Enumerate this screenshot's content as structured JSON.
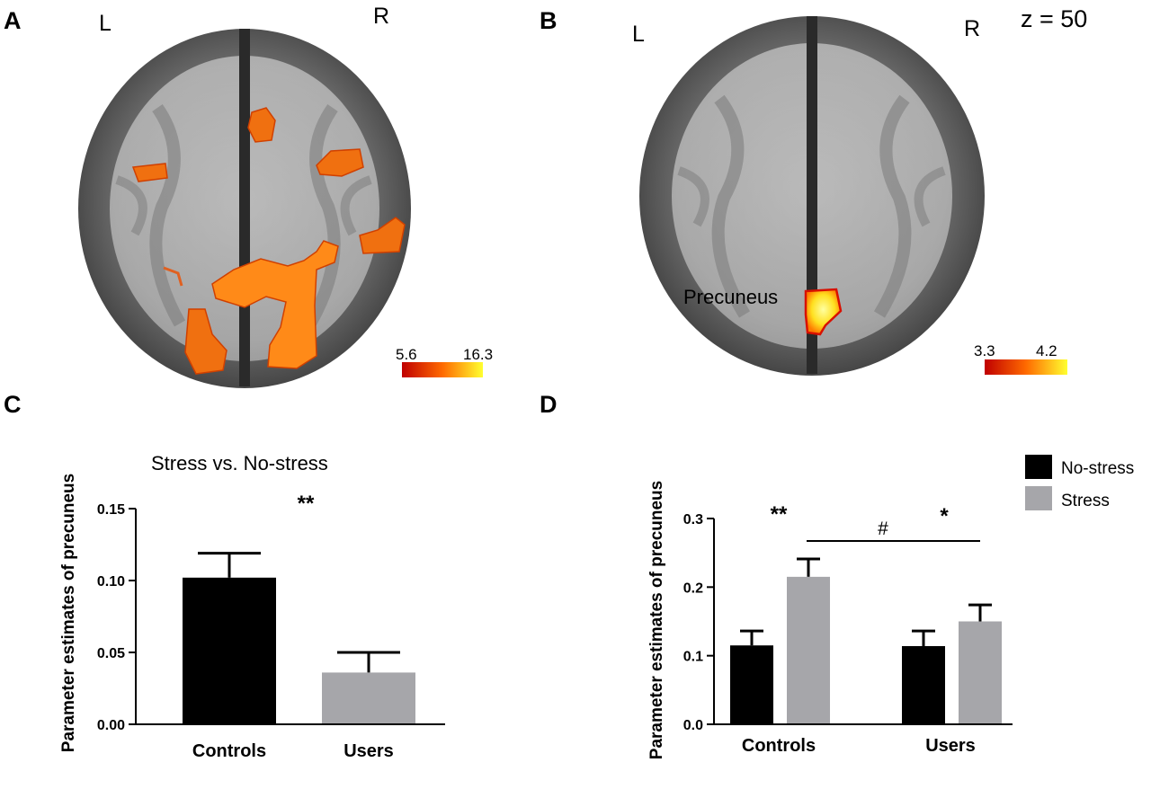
{
  "panels": {
    "a": {
      "label": "A",
      "left": "L",
      "right": "R",
      "colorbar": {
        "min": "5.6",
        "max": "16.3",
        "colors": [
          "#c00000",
          "#ff6a00",
          "#ffff30"
        ]
      }
    },
    "b": {
      "label": "B",
      "left": "L",
      "right": "R",
      "slice": "z = 50",
      "region": "Precuneus",
      "colorbar": {
        "min": "3.3",
        "max": "4.2",
        "colors": [
          "#c00000",
          "#ff6a00",
          "#ffff30"
        ]
      }
    },
    "c": {
      "label": "C"
    },
    "d": {
      "label": "D"
    }
  },
  "colors": {
    "brain_bg": "#5e5e5e",
    "cluster": "#f07010",
    "no_stress": "#000000",
    "stress": "#a6a6aa"
  },
  "chart_data": [
    {
      "panel": "C",
      "type": "bar",
      "title": "Stress vs. No-stress",
      "ylabel": "Parameter estimates of precuneus",
      "xlabel": "",
      "categories": [
        "Controls",
        "Users"
      ],
      "values": [
        0.102,
        0.036
      ],
      "errors": [
        0.017,
        0.014
      ],
      "bar_colors": [
        "#000000",
        "#a6a6aa"
      ],
      "ylim": [
        0,
        0.15
      ],
      "yticks": [
        "0.00",
        "0.05",
        "0.10",
        "0.15"
      ],
      "significance": "**",
      "grid": false
    },
    {
      "panel": "D",
      "type": "bar",
      "ylabel": "Parameter estimates of precuneus",
      "xlabel": "",
      "categories": [
        "Controls",
        "Users"
      ],
      "series": [
        {
          "name": "No-stress",
          "values": [
            0.115,
            0.114
          ],
          "errors": [
            0.021,
            0.022
          ],
          "color": "#000000"
        },
        {
          "name": "Stress",
          "values": [
            0.215,
            0.15
          ],
          "errors": [
            0.026,
            0.024
          ],
          "color": "#a6a6aa"
        }
      ],
      "ylim": [
        0,
        0.3
      ],
      "yticks": [
        "0.0",
        "0.1",
        "0.2",
        "0.3"
      ],
      "annotations": {
        "controls_sig": "**",
        "users_sig": "*",
        "group_sig": "#"
      },
      "legend": "top-right",
      "grid": false
    }
  ]
}
